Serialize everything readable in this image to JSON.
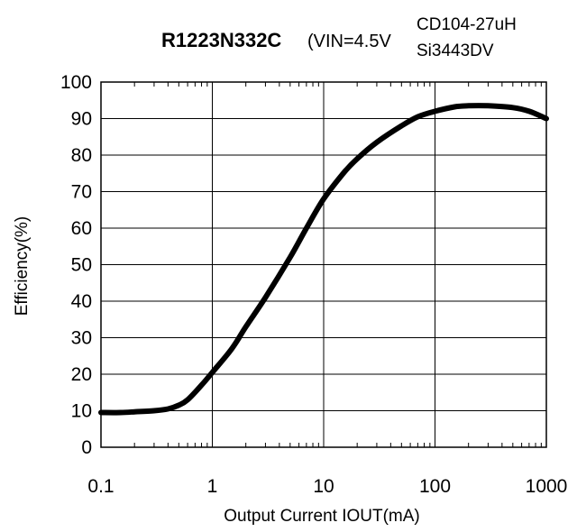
{
  "chart_data": {
    "type": "line",
    "title": "R1223N332C",
    "subtitle": "(VIN=4.5V",
    "annotations": [
      "CD104-27uH",
      "Si3443DV"
    ],
    "xlabel": "Output Current IOUT(mA)",
    "ylabel": "Efficiency(%)",
    "x_scale": "log",
    "xlim": [
      0.1,
      1000
    ],
    "ylim": [
      0,
      100
    ],
    "x_ticks": [
      0.1,
      1,
      10,
      100,
      1000
    ],
    "x_tick_labels": [
      "0.1",
      "1",
      "10",
      "100",
      "1000"
    ],
    "y_ticks": [
      0,
      10,
      20,
      30,
      40,
      50,
      60,
      70,
      80,
      90,
      100
    ],
    "y_tick_labels": [
      "0",
      "10",
      "20",
      "30",
      "40",
      "50",
      "60",
      "70",
      "80",
      "90",
      "100"
    ],
    "grid": true,
    "series_color": "#000000",
    "series": [
      {
        "x": [
          0.1,
          0.15,
          0.2,
          0.3,
          0.4,
          0.5,
          0.6,
          0.8,
          1,
          1.5,
          2,
          3,
          5,
          7,
          10,
          15,
          20,
          30,
          50,
          70,
          100,
          150,
          200,
          300,
          500,
          700,
          1000
        ],
        "y": [
          9.5,
          9.5,
          9.7,
          10.0,
          10.5,
          11.5,
          13.0,
          17.0,
          20.5,
          27.0,
          33.0,
          41.0,
          52.0,
          60.0,
          68.0,
          75.0,
          79.0,
          83.5,
          88.0,
          90.5,
          92.0,
          93.2,
          93.5,
          93.5,
          93.0,
          92.0,
          90.0
        ]
      }
    ]
  }
}
